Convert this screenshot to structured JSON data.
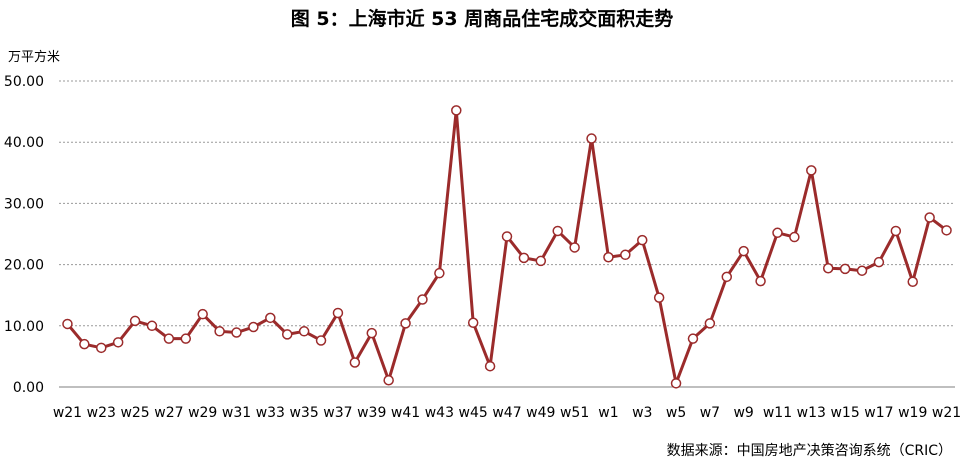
{
  "title": "图 5：上海市近 53 周商品住宅成交面积走势",
  "source": "数据来源：中国房地产决策咨询系统（CRIC）",
  "chart_data": {
    "type": "line",
    "ylabel": "万平方米",
    "xlabel": "",
    "ylim": [
      0,
      50
    ],
    "yticks": [
      "0.00",
      "10.00",
      "20.00",
      "30.00",
      "40.00",
      "50.00"
    ],
    "grid": "horizontal",
    "line_color": "#9b2b2b",
    "x": [
      "w21",
      "w22",
      "w23",
      "w24",
      "w25",
      "w26",
      "w27",
      "w28",
      "w29",
      "w30",
      "w31",
      "w32",
      "w33",
      "w34",
      "w35",
      "w36",
      "w37",
      "w38",
      "w39",
      "w40",
      "w41",
      "w42",
      "w43",
      "w44",
      "w45",
      "w46",
      "w47",
      "w48",
      "w49",
      "w50",
      "w51",
      "w52",
      "w1",
      "w2",
      "w3",
      "w4",
      "w5",
      "w6",
      "w7",
      "w8",
      "w9",
      "w10",
      "w11",
      "w12",
      "w13",
      "w14",
      "w15",
      "w16",
      "w17",
      "w18",
      "w19",
      "w20",
      "w21"
    ],
    "x_tick_labels": [
      "w21",
      "w23",
      "w25",
      "w27",
      "w29",
      "w31",
      "w33",
      "w35",
      "w37",
      "w39",
      "w41",
      "w43",
      "w45",
      "w47",
      "w49",
      "w51",
      "w1",
      "w3",
      "w5",
      "w7",
      "w9",
      "w11",
      "w13",
      "w15",
      "w17",
      "w19",
      "w21"
    ],
    "values": [
      10.3,
      7.0,
      6.4,
      7.3,
      10.8,
      10.0,
      7.9,
      7.9,
      11.9,
      9.1,
      8.9,
      9.8,
      11.3,
      8.6,
      9.1,
      7.6,
      12.1,
      4.0,
      8.8,
      1.1,
      10.4,
      14.3,
      18.6,
      45.2,
      10.5,
      3.4,
      24.6,
      21.1,
      20.6,
      25.5,
      22.8,
      40.6,
      21.2,
      21.6,
      24.0,
      14.6,
      0.6,
      7.9,
      10.4,
      18.0,
      22.2,
      17.3,
      25.2,
      24.5,
      35.4,
      19.4,
      19.3,
      19.0,
      20.4,
      25.5,
      17.2,
      27.7,
      25.6
    ]
  }
}
